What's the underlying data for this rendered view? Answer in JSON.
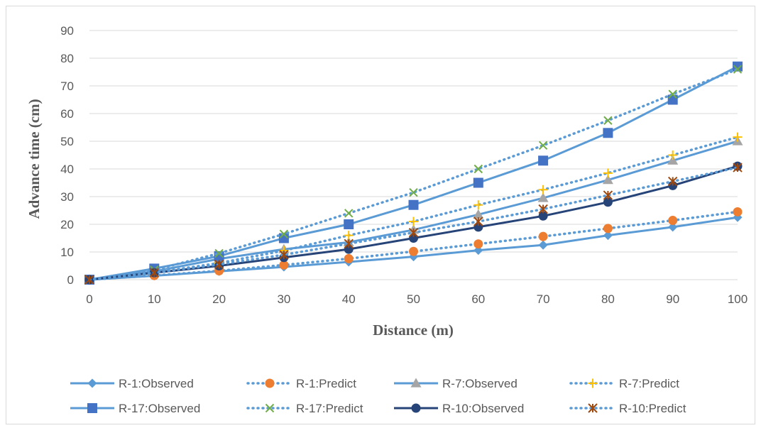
{
  "chart_data": {
    "type": "line",
    "title": "",
    "xlabel": "Distance (m)",
    "ylabel": "Advance time (cm)",
    "xlim": [
      0,
      100
    ],
    "ylim": [
      0,
      90
    ],
    "x_ticks": [
      "0",
      "10",
      "20",
      "30",
      "40",
      "50",
      "60",
      "70",
      "80",
      "90",
      "100"
    ],
    "y_ticks": [
      "0",
      "10",
      "20",
      "30",
      "40",
      "50",
      "60",
      "70",
      "80",
      "90"
    ],
    "x": [
      0,
      10,
      20,
      30,
      40,
      50,
      60,
      70,
      80,
      90,
      100
    ],
    "grid": "horizontal",
    "legend_position": "bottom",
    "series": [
      {
        "name": "R-1:Observed",
        "style": "solid",
        "marker": "diamond",
        "color": "#5b9bd5",
        "marker_color": "#5b9bd5",
        "values": [
          0,
          1.4,
          3.0,
          4.6,
          6.4,
          8.3,
          10.6,
          12.5,
          16.0,
          19.0,
          22.5
        ]
      },
      {
        "name": "R-1:Predict",
        "style": "dotted",
        "marker": "circle",
        "color": "#5b9bd5",
        "marker_color": "#ed7d31",
        "values": [
          0,
          1.5,
          3.2,
          5.3,
          7.6,
          10.2,
          12.9,
          15.6,
          18.5,
          21.4,
          24.5
        ]
      },
      {
        "name": "R-7:Observed",
        "style": "solid",
        "marker": "triangle",
        "color": "#5b9bd5",
        "marker_color": "#a5a5a5",
        "values": [
          0,
          3.0,
          7.5,
          11.0,
          13.5,
          18.0,
          23.5,
          29.5,
          36.0,
          43.0,
          50.0
        ]
      },
      {
        "name": "R-7:Predict",
        "style": "dotted",
        "marker": "plus",
        "color": "#5b9bd5",
        "marker_color": "#ffc000",
        "values": [
          0,
          2.5,
          6.0,
          10.5,
          16.0,
          21.0,
          27.0,
          32.5,
          38.5,
          45.0,
          51.5
        ]
      },
      {
        "name": "R-17:Observed",
        "style": "solid",
        "marker": "square",
        "color": "#5b9bd5",
        "marker_color": "#4472c4",
        "values": [
          0,
          4.0,
          8.5,
          15.0,
          20.0,
          27.0,
          35.0,
          43.0,
          53.0,
          65.0,
          77.0
        ]
      },
      {
        "name": "R-17:Predict",
        "style": "dotted",
        "marker": "x",
        "color": "#5b9bd5",
        "marker_color": "#70ad47",
        "values": [
          0,
          3.5,
          9.5,
          16.5,
          24.0,
          31.5,
          40.0,
          48.5,
          57.5,
          67.0,
          76.0
        ]
      },
      {
        "name": "R-10:Observed",
        "style": "solid",
        "marker": "circle",
        "color": "#264478",
        "marker_color": "#264478",
        "values": [
          0,
          2.5,
          5.0,
          8.0,
          11.0,
          15.0,
          19.0,
          23.0,
          28.0,
          34.0,
          41.0
        ]
      },
      {
        "name": "R-10:Predict",
        "style": "dotted",
        "marker": "star",
        "color": "#5b9bd5",
        "marker_color": "#9e480e",
        "values": [
          0,
          2.5,
          5.5,
          9.0,
          13.0,
          17.0,
          21.0,
          25.5,
          30.5,
          35.5,
          40.5
        ]
      }
    ]
  }
}
